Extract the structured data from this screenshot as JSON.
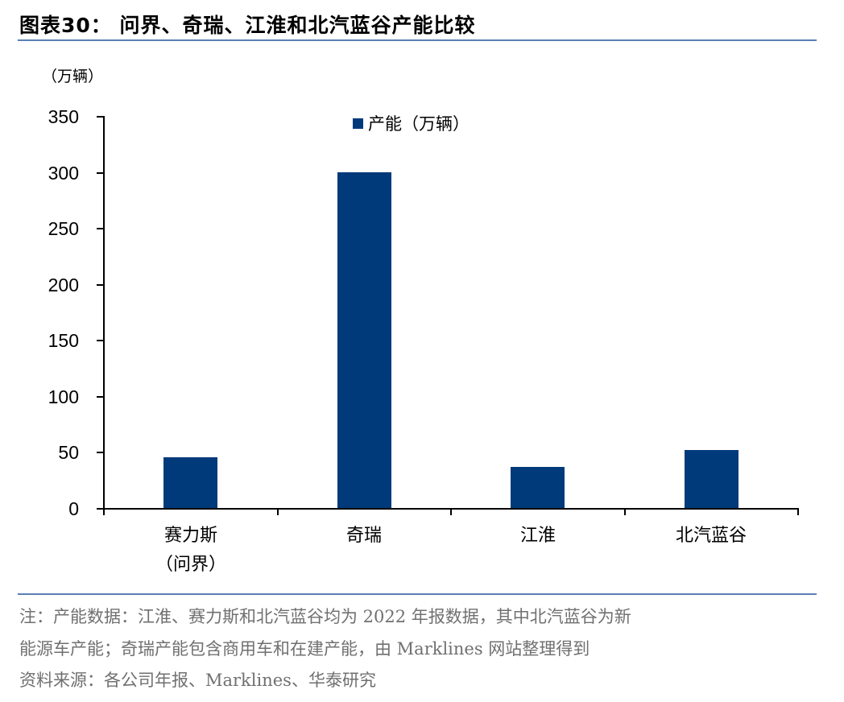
{
  "header": {
    "title": "图表30：  问界、奇瑞、江淮和北汽蓝谷产能比较"
  },
  "chart_data": {
    "type": "bar",
    "title": "问界、奇瑞、江淮和北汽蓝谷产能比较",
    "ylabel": "（万辆）",
    "xlabel": "",
    "categories": [
      "赛力斯（问界）",
      "奇瑞",
      "江淮",
      "北汽蓝谷"
    ],
    "category_lines": [
      [
        "赛力斯",
        "（问界）"
      ],
      [
        "奇瑞"
      ],
      [
        "江淮"
      ],
      [
        "北汽蓝谷"
      ]
    ],
    "series": [
      {
        "name": "产能（万辆）",
        "values": [
          45,
          300,
          37,
          52
        ],
        "color": "#003A7A"
      }
    ],
    "ylim": [
      0,
      350
    ],
    "yticks": [
      0,
      50,
      100,
      150,
      200,
      250,
      300,
      350
    ],
    "grid": false,
    "legend_position": "top-center"
  },
  "notes": {
    "line1": "注：产能数据：江淮、赛力斯和北汽蓝谷均为 2022 年报数据，其中北汽蓝谷为新",
    "line2": "能源车产能；奇瑞产能包含商用车和在建产能，由 Marklines 网站整理得到",
    "source": "资料来源：各公司年报、Marklines、华泰研究"
  },
  "colors": {
    "bar": "#003A7A",
    "rule": "#5b7fb5",
    "note_text": "#707070"
  }
}
